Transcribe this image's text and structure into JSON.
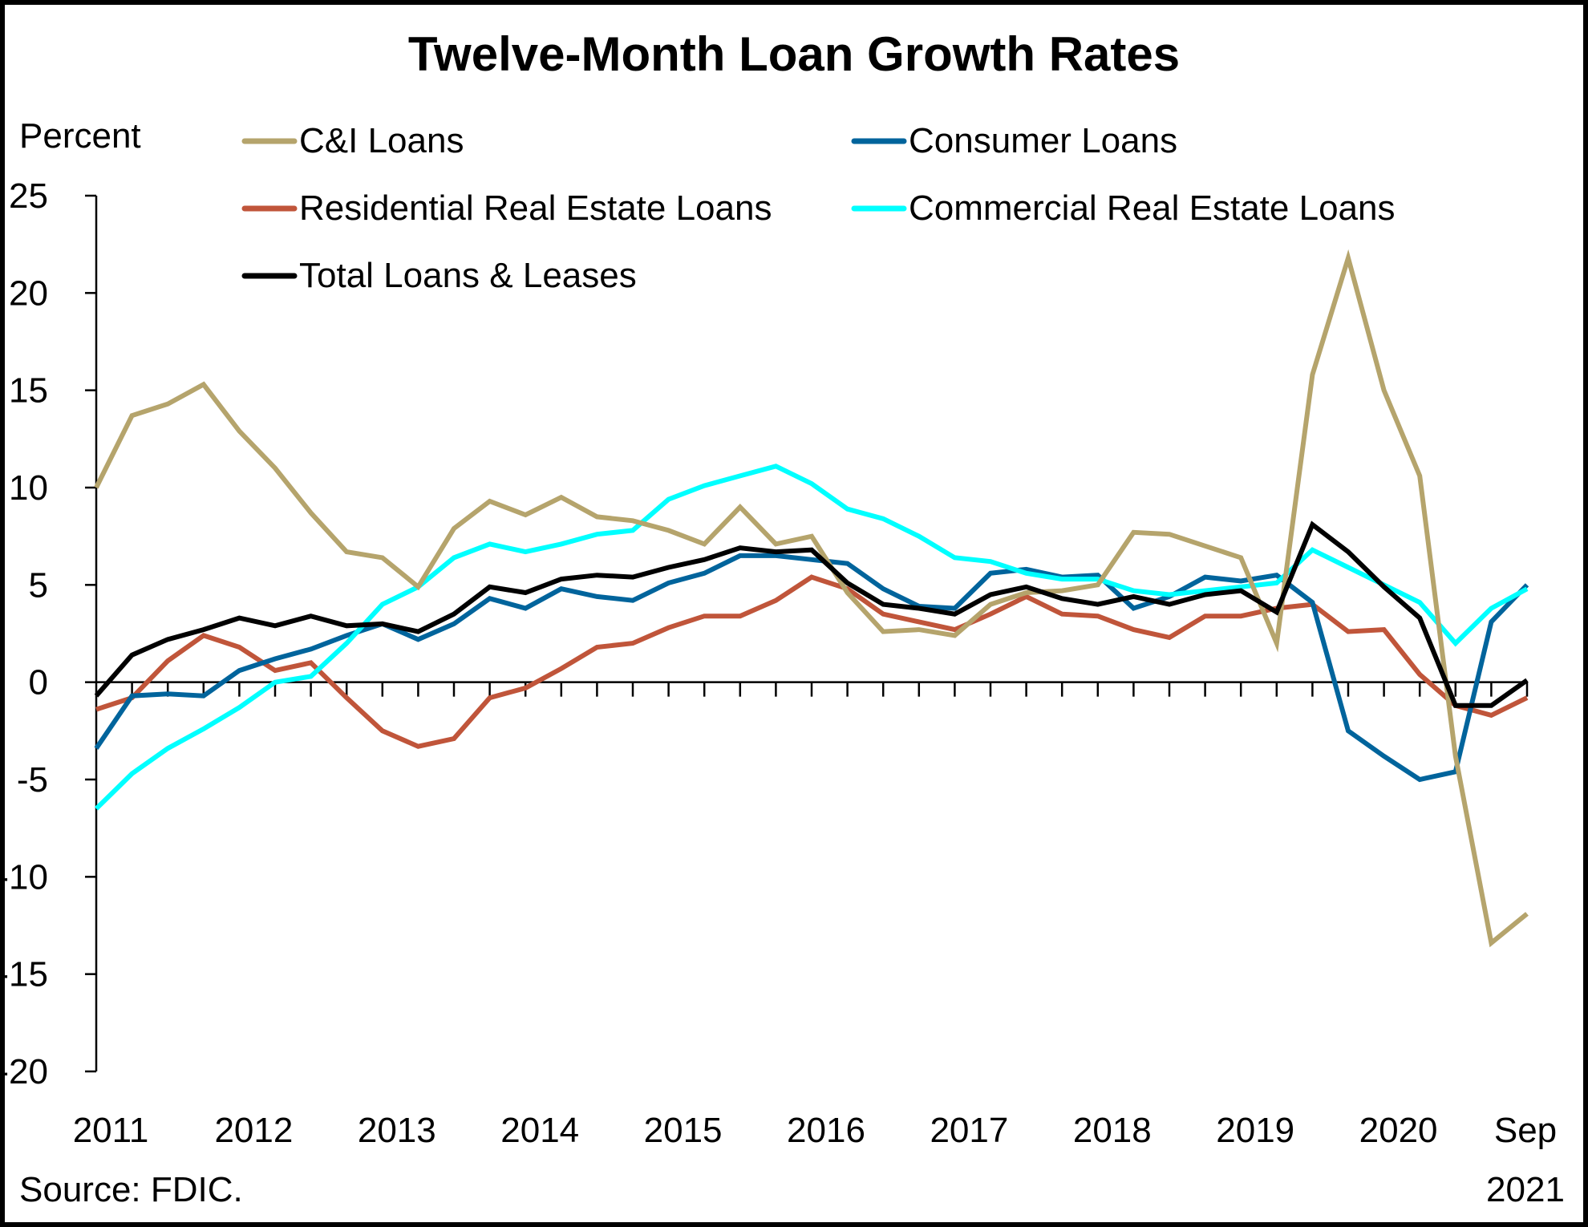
{
  "chart_data": {
    "type": "line",
    "title": "Twelve-Month Loan Growth Rates",
    "ylabel": "Percent",
    "xlabel": "",
    "source": "Source: FDIC.",
    "ylim": [
      -20,
      25
    ],
    "yticks": [
      25,
      20,
      15,
      10,
      5,
      0,
      -5,
      -10,
      -15,
      -20
    ],
    "ytick_labels": [
      "25",
      "20",
      "15",
      "10",
      "5",
      "0",
      "-5",
      "-10",
      "-15",
      "-20"
    ],
    "x_count": 41,
    "x_ticks": [
      {
        "index": 0,
        "label": "2011"
      },
      {
        "index": 4,
        "label": "2012"
      },
      {
        "index": 8,
        "label": "2013"
      },
      {
        "index": 12,
        "label": "2014"
      },
      {
        "index": 16,
        "label": "2015"
      },
      {
        "index": 20,
        "label": "2016"
      },
      {
        "index": 24,
        "label": "2017"
      },
      {
        "index": 28,
        "label": "2018"
      },
      {
        "index": 32,
        "label": "2019"
      },
      {
        "index": 36,
        "label": "2020"
      },
      {
        "index": 40,
        "label": "Sep",
        "label2": "2021"
      }
    ],
    "grid": false,
    "legend_placement": "top",
    "series": [
      {
        "name": "C&I Loans",
        "color": "#B5A46C",
        "values": [
          10.0,
          13.7,
          14.3,
          15.3,
          12.9,
          11.0,
          8.7,
          6.7,
          6.4,
          4.9,
          7.9,
          9.3,
          8.6,
          9.5,
          8.5,
          8.3,
          7.8,
          7.1,
          9.0,
          7.1,
          7.5,
          4.6,
          2.6,
          2.7,
          2.4,
          4.0,
          4.6,
          4.7,
          5.0,
          7.7,
          7.6,
          7.0,
          6.4,
          2.0,
          15.8,
          21.8,
          15.0,
          10.6,
          -3.8,
          -13.4,
          -11.9
        ]
      },
      {
        "name": "Consumer Loans",
        "color": "#00649C",
        "values": [
          -3.4,
          -0.7,
          -0.6,
          -0.7,
          0.6,
          1.2,
          1.7,
          2.4,
          3.0,
          2.2,
          3.0,
          4.3,
          3.8,
          4.8,
          4.4,
          4.2,
          5.1,
          5.6,
          6.5,
          6.5,
          6.3,
          6.1,
          4.8,
          3.9,
          3.8,
          5.6,
          5.8,
          5.4,
          5.5,
          3.8,
          4.4,
          5.4,
          5.2,
          5.5,
          4.1,
          -2.5,
          -3.8,
          -5.0,
          -4.6,
          3.1,
          5.0
        ]
      },
      {
        "name": "Residential Real Estate Loans",
        "color": "#C0553A",
        "values": [
          -1.4,
          -0.8,
          1.1,
          2.4,
          1.8,
          0.6,
          1.0,
          -0.8,
          -2.5,
          -3.3,
          -2.9,
          -0.8,
          -0.3,
          0.7,
          1.8,
          2.0,
          2.8,
          3.4,
          3.4,
          4.2,
          5.4,
          4.8,
          3.5,
          3.1,
          2.7,
          3.5,
          4.4,
          3.5,
          3.4,
          2.7,
          2.3,
          3.4,
          3.4,
          3.8,
          4.0,
          2.6,
          2.7,
          0.4,
          -1.2,
          -1.7,
          -0.8
        ]
      },
      {
        "name": "Commercial Real Estate Loans",
        "color": "#00FFFF",
        "values": [
          -6.5,
          -4.7,
          -3.4,
          -2.4,
          -1.3,
          0.0,
          0.3,
          2.0,
          4.0,
          4.9,
          6.4,
          7.1,
          6.7,
          7.1,
          7.6,
          7.8,
          9.4,
          10.1,
          10.6,
          11.1,
          10.2,
          8.9,
          8.4,
          7.5,
          6.4,
          6.2,
          5.6,
          5.3,
          5.3,
          4.7,
          4.5,
          4.7,
          4.9,
          5.1,
          6.8,
          5.9,
          5.0,
          4.1,
          2.0,
          3.8,
          4.8
        ]
      },
      {
        "name": "Total Loans & Leases",
        "color": "#000000",
        "values": [
          -0.7,
          1.4,
          2.2,
          2.7,
          3.3,
          2.9,
          3.4,
          2.9,
          3.0,
          2.6,
          3.5,
          4.9,
          4.6,
          5.3,
          5.5,
          5.4,
          5.9,
          6.3,
          6.9,
          6.7,
          6.8,
          5.1,
          4.0,
          3.8,
          3.5,
          4.5,
          4.9,
          4.3,
          4.0,
          4.4,
          4.0,
          4.5,
          4.7,
          3.6,
          8.1,
          6.7,
          4.9,
          3.3,
          -1.2,
          -1.2,
          0.1
        ]
      }
    ],
    "legend_order": [
      0,
      1,
      2,
      3,
      4
    ]
  }
}
